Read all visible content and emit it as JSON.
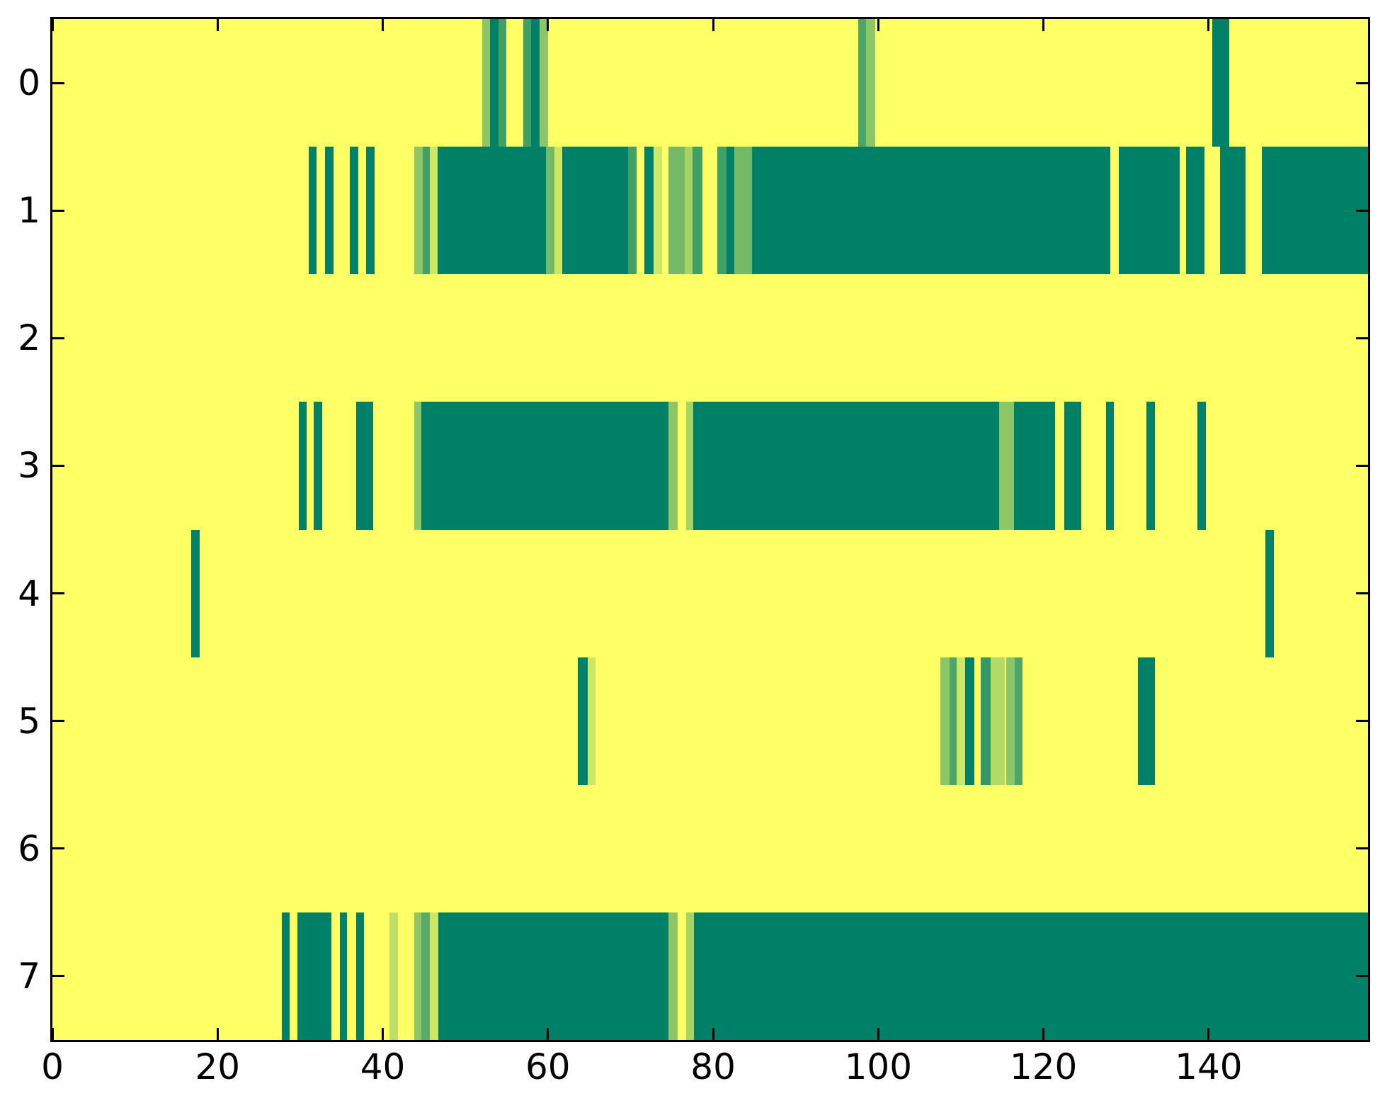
{
  "figure": {
    "background": "#FFFFFF",
    "plot_background": "#FFFF66",
    "spine_color": "#000000",
    "tick_color": "#000000",
    "tick_direction": "in"
  },
  "chart_data": {
    "type": "heatmap",
    "title": "",
    "xlabel": "",
    "ylabel": "",
    "legend": "none",
    "grid": false,
    "xlim": [
      0,
      159.3
    ],
    "ylim": [
      7.5,
      -0.5
    ],
    "n_rows": 8,
    "x_tick_labels": [
      "0",
      "20",
      "40",
      "60",
      "80",
      "100",
      "120",
      "140"
    ],
    "x_tick_values": [
      0,
      20,
      40,
      60,
      80,
      100,
      120,
      140
    ],
    "y_tick_labels": [
      "0",
      "1",
      "2",
      "3",
      "4",
      "5",
      "6",
      "7"
    ],
    "y_tick_values": [
      0,
      1,
      2,
      3,
      4,
      5,
      6,
      7
    ],
    "colormap": {
      "name": "summer",
      "low_hex": "#008066",
      "mid_hex": "#4DA666",
      "light_hex": "#8CC666",
      "pale_hex": "#CCE666",
      "high_hex": "#FFFF66",
      "formula": "rgb(255*v, 128+127*v, 102)"
    },
    "background_value": 1.0,
    "rows": [
      {
        "y": 0,
        "segments": [
          [
            52,
            53,
            0.55
          ],
          [
            53,
            54,
            0
          ],
          [
            54,
            55,
            0.25
          ],
          [
            57,
            58,
            0.25
          ],
          [
            58,
            59,
            0
          ],
          [
            59,
            60,
            0.55
          ],
          [
            97.6,
            98.5,
            0.3
          ],
          [
            98.5,
            99.6,
            0.55
          ],
          [
            140.4,
            142.5,
            0
          ]
        ]
      },
      {
        "y": 1,
        "segments": [
          [
            31,
            32,
            0
          ],
          [
            33,
            34,
            0
          ],
          [
            36,
            37,
            0
          ],
          [
            38,
            39,
            0
          ],
          [
            43.8,
            44.8,
            0.55
          ],
          [
            44.8,
            45.7,
            0.25
          ],
          [
            45.7,
            46.6,
            0.8
          ],
          [
            46.6,
            59.8,
            0
          ],
          [
            59.8,
            60.8,
            0.45
          ],
          [
            60.8,
            61.7,
            0.8
          ],
          [
            61.7,
            69.7,
            0
          ],
          [
            69.7,
            70.7,
            0.25
          ],
          [
            71.7,
            72.8,
            0
          ],
          [
            72.8,
            73.8,
            0.8
          ],
          [
            74.6,
            76.6,
            0.45
          ],
          [
            76.6,
            77.5,
            0.65
          ],
          [
            77.5,
            78.7,
            0.25
          ],
          [
            80.5,
            81.6,
            0.25
          ],
          [
            81.6,
            82.6,
            0
          ],
          [
            82.6,
            84.7,
            0.45
          ],
          [
            84.7,
            128.1,
            0
          ],
          [
            129.1,
            136.5,
            0
          ],
          [
            137.3,
            139.5,
            0
          ],
          [
            141.4,
            144.5,
            0
          ],
          [
            146.4,
            159.3,
            0
          ]
        ]
      },
      {
        "y": 2,
        "segments": []
      },
      {
        "y": 3,
        "segments": [
          [
            29.8,
            30.8,
            0
          ],
          [
            31.6,
            32.7,
            0
          ],
          [
            36.8,
            38.8,
            0
          ],
          [
            43.8,
            44.7,
            0.55
          ],
          [
            44.7,
            74.6,
            0
          ],
          [
            74.6,
            75.7,
            0.55
          ],
          [
            76.7,
            77.6,
            0.65
          ],
          [
            77.6,
            114.6,
            0
          ],
          [
            114.6,
            116.4,
            0.55
          ],
          [
            116.4,
            121.4,
            0
          ],
          [
            122.5,
            124.6,
            0
          ],
          [
            127.6,
            128.5,
            0
          ],
          [
            132.5,
            133.5,
            0
          ],
          [
            138.6,
            139.7,
            0
          ]
        ]
      },
      {
        "y": 4,
        "segments": [
          [
            16.8,
            17.8,
            0
          ],
          [
            146.9,
            147.9,
            0
          ]
        ]
      },
      {
        "y": 5,
        "segments": [
          [
            63.6,
            64.8,
            0
          ],
          [
            64.8,
            65.8,
            0.8
          ],
          [
            107.5,
            108.6,
            0.55
          ],
          [
            108.6,
            109.5,
            0.3
          ],
          [
            109.5,
            110.5,
            0.8
          ],
          [
            110.5,
            111.6,
            0
          ],
          [
            112.4,
            113.6,
            0.2
          ],
          [
            113.6,
            115.3,
            0.7
          ],
          [
            115.5,
            116.5,
            0.55
          ],
          [
            116.5,
            117.5,
            0.3
          ],
          [
            131.4,
            133.5,
            0
          ]
        ]
      },
      {
        "y": 6,
        "segments": []
      },
      {
        "y": 7,
        "segments": [
          [
            27.8,
            28.7,
            0
          ],
          [
            29.7,
            33.8,
            0
          ],
          [
            34.8,
            35.7,
            0
          ],
          [
            36.8,
            37.7,
            0
          ],
          [
            40.8,
            41.8,
            0.75
          ],
          [
            43.8,
            44.7,
            0.55
          ],
          [
            44.7,
            45.7,
            0.35
          ],
          [
            45.7,
            46.7,
            0.8
          ],
          [
            46.7,
            74.6,
            0
          ],
          [
            74.6,
            75.7,
            0.55
          ],
          [
            76.7,
            77.7,
            0.65
          ],
          [
            77.7,
            159.3,
            0
          ]
        ]
      }
    ]
  }
}
